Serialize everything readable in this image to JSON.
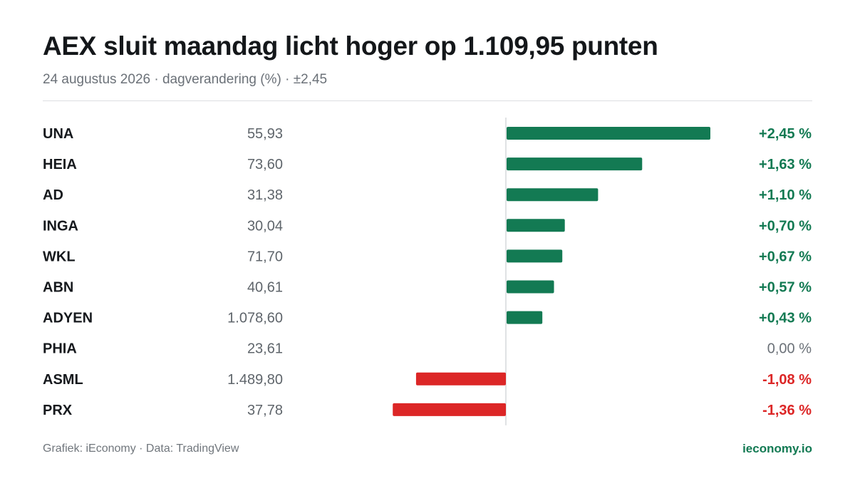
{
  "title": "AEX sluit maandag licht hoger op 1.109,95 punten",
  "subtitle": "24 augustus 2026 · dagverandering (%) · ±2,45",
  "footer": {
    "credit": "Grafiek: iEconomy · Data: TradingView",
    "brand": "ieconomy.io"
  },
  "colors": {
    "positive": "#137a53",
    "negative": "#dc2626",
    "neutral": "#6b7178",
    "ticker": "#16191d",
    "price": "#5f656b",
    "axis": "#d6d9dc"
  },
  "chart_data": {
    "type": "bar",
    "orientation": "horizontal",
    "xlim": [
      -2.45,
      2.45
    ],
    "categories": [
      "UNA",
      "HEIA",
      "AD",
      "INGA",
      "WKL",
      "ABN",
      "ADYEN",
      "PHIA",
      "ASML",
      "PRX"
    ],
    "prices": [
      "55,93",
      "73,60",
      "31,38",
      "30,04",
      "71,70",
      "40,61",
      "1.078,60",
      "23,61",
      "1.489,80",
      "37,78"
    ],
    "values": [
      2.45,
      1.63,
      1.1,
      0.7,
      0.67,
      0.57,
      0.43,
      0.0,
      -1.08,
      -1.36
    ],
    "value_labels": [
      "+2,45 %",
      "+1,63 %",
      "+1,10 %",
      "+0,70 %",
      "+0,67 %",
      "+0,57 %",
      "+0,43 %",
      "0,00 %",
      "-1,08 %",
      "-1,36 %"
    ]
  }
}
